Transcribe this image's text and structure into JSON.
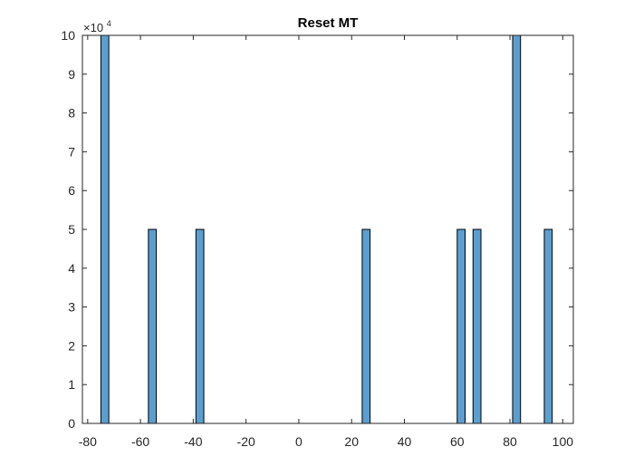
{
  "chart_data": {
    "type": "bar",
    "title": "Reset MT",
    "xlabel": "",
    "ylabel": "",
    "xlim": [
      -82,
      104
    ],
    "ylim": [
      0,
      100000
    ],
    "grid": false,
    "bar_width": 3,
    "y_exponent_label": {
      "base": "×10",
      "exponent": "4"
    },
    "x_ticks": [
      {
        "value": -80,
        "label": "-80"
      },
      {
        "value": -60,
        "label": "-60"
      },
      {
        "value": -40,
        "label": "-40"
      },
      {
        "value": -20,
        "label": "-20"
      },
      {
        "value": 0,
        "label": "0"
      },
      {
        "value": 20,
        "label": "20"
      },
      {
        "value": 40,
        "label": "40"
      },
      {
        "value": 60,
        "label": "60"
      },
      {
        "value": 80,
        "label": "80"
      },
      {
        "value": 100,
        "label": "100"
      }
    ],
    "y_ticks": [
      {
        "value": 0,
        "label": "0"
      },
      {
        "value": 10000,
        "label": "1"
      },
      {
        "value": 20000,
        "label": "2"
      },
      {
        "value": 30000,
        "label": "3"
      },
      {
        "value": 40000,
        "label": "4"
      },
      {
        "value": 50000,
        "label": "5"
      },
      {
        "value": 60000,
        "label": "6"
      },
      {
        "value": 70000,
        "label": "7"
      },
      {
        "value": 80000,
        "label": "8"
      },
      {
        "value": 90000,
        "label": "9"
      },
      {
        "value": 100000,
        "label": "10"
      }
    ],
    "bars": [
      {
        "x": -73.5,
        "value": 100000
      },
      {
        "x": -55.5,
        "value": 50000
      },
      {
        "x": -37.5,
        "value": 50000
      },
      {
        "x": 25.5,
        "value": 50000
      },
      {
        "x": 61.5,
        "value": 50000
      },
      {
        "x": 67.5,
        "value": 50000
      },
      {
        "x": 82.5,
        "value": 100000
      },
      {
        "x": 94.5,
        "value": 50000
      }
    ],
    "colors": {
      "bar_fill": "#5a9fd0",
      "bar_edge": "#000000",
      "axis": "#262626",
      "background": "#ffffff"
    }
  }
}
